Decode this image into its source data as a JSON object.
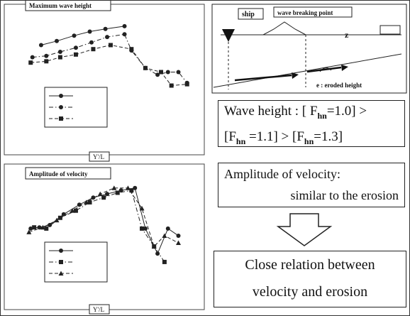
{
  "chart_data": [
    {
      "type": "line",
      "title": "Maximum wave height",
      "x_label": "Y'/L",
      "xlim": [
        0,
        100
      ],
      "ylim": [
        0,
        100
      ],
      "series": [
        {
          "color": "#222",
          "marker": "circle",
          "dash": "solid",
          "x": [
            11,
            20,
            30,
            39,
            48,
            59
          ],
          "values": [
            75,
            78,
            82,
            85,
            87,
            89
          ]
        },
        {
          "color": "#222",
          "marker": "circle",
          "dash": "dashdot",
          "x": [
            6,
            14,
            22,
            31,
            40,
            49,
            59,
            63,
            71,
            78,
            84,
            90,
            95
          ],
          "values": [
            66,
            67,
            70,
            73,
            77,
            81,
            83,
            71,
            58,
            53,
            55,
            55,
            47
          ]
        },
        {
          "color": "#222",
          "marker": "square",
          "dash": "dashed",
          "x": [
            5,
            14,
            22,
            31,
            41,
            51,
            63,
            71,
            80,
            86,
            95
          ],
          "values": [
            62,
            63,
            66,
            68,
            72,
            75,
            72,
            58,
            55,
            45,
            46
          ]
        }
      ]
    },
    {
      "type": "line",
      "title": "Amplitude of velocity",
      "x_label": "Y'/L",
      "xlim": [
        0,
        100
      ],
      "ylim": [
        0,
        100
      ],
      "series": [
        {
          "color": "#222",
          "marker": "circle",
          "dash": "solid",
          "x": [
            5,
            10,
            16,
            24,
            33,
            41,
            49,
            57,
            65,
            71,
            78,
            84,
            90
          ],
          "values": [
            59,
            60,
            62,
            71,
            79,
            85,
            88,
            91,
            93,
            59,
            38,
            59,
            53
          ]
        },
        {
          "color": "#222",
          "marker": "square",
          "dash": "dashdot",
          "x": [
            7,
            14,
            22,
            31,
            39,
            47,
            55,
            63,
            69,
            76,
            82
          ],
          "values": [
            60,
            59,
            68,
            74,
            81,
            85,
            89,
            91,
            59,
            44,
            31
          ]
        },
        {
          "color": "#222",
          "marker": "triangle",
          "dash": "dashed",
          "x": [
            4,
            12,
            20,
            29,
            37,
            45,
            53,
            61,
            69,
            76,
            82,
            90
          ],
          "values": [
            56,
            60,
            66,
            74,
            81,
            88,
            93,
            93,
            76,
            44,
            53,
            47
          ]
        }
      ]
    }
  ],
  "diagram": {
    "ship": "ship",
    "breaking": "wave breaking point",
    "z": "z",
    "eroded": "e : eroded height"
  },
  "wave_height": {
    "line1": [
      "Wave height : [ F",
      "hn",
      "=1.0] >"
    ],
    "line2": [
      "[F",
      "hn",
      " =1.1] > [F",
      "hn",
      "=1.3]"
    ]
  },
  "velocity": {
    "line1": "Amplitude of velocity:",
    "line2": "similar to the erosion"
  },
  "conclusion": {
    "line1": "Close relation between",
    "line2": "velocity and erosion"
  }
}
